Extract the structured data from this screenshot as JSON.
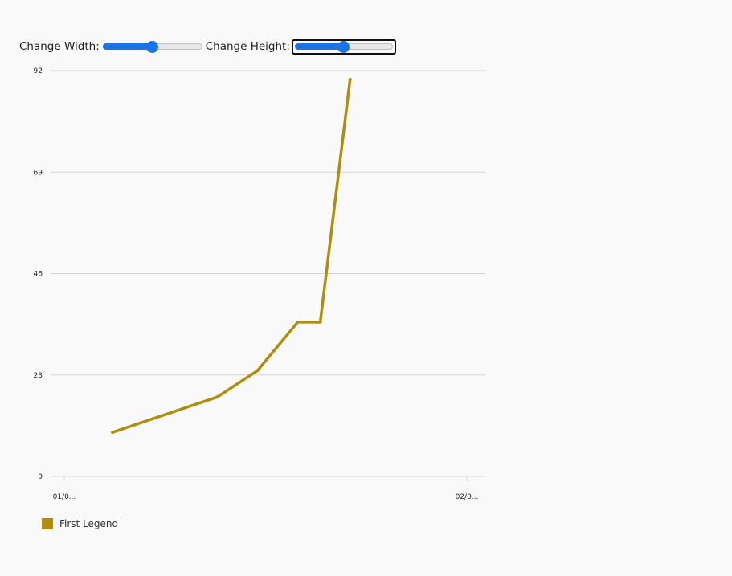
{
  "controls": {
    "width_label": "Change Width:",
    "height_label": "Change Height:",
    "width_value": 0.5,
    "height_value": 0.5
  },
  "colors": {
    "series": "#b08d0b",
    "grid": "#d6d6d6",
    "slider": "#1a73e8"
  },
  "chart_data": {
    "type": "line",
    "title": "",
    "xlabel": "",
    "ylabel": "",
    "x_tick_labels": [
      "01/0...",
      "02/0..."
    ],
    "y_ticks": [
      0,
      23,
      46,
      69,
      92
    ],
    "ylim": [
      0,
      92
    ],
    "grid": true,
    "legend_position": "bottom-left",
    "series": [
      {
        "name": "First Legend",
        "x": [
          0.12,
          0.38,
          0.48,
          0.58,
          0.636,
          0.71
        ],
        "values": [
          10,
          18,
          24,
          35,
          35,
          90
        ]
      }
    ]
  }
}
